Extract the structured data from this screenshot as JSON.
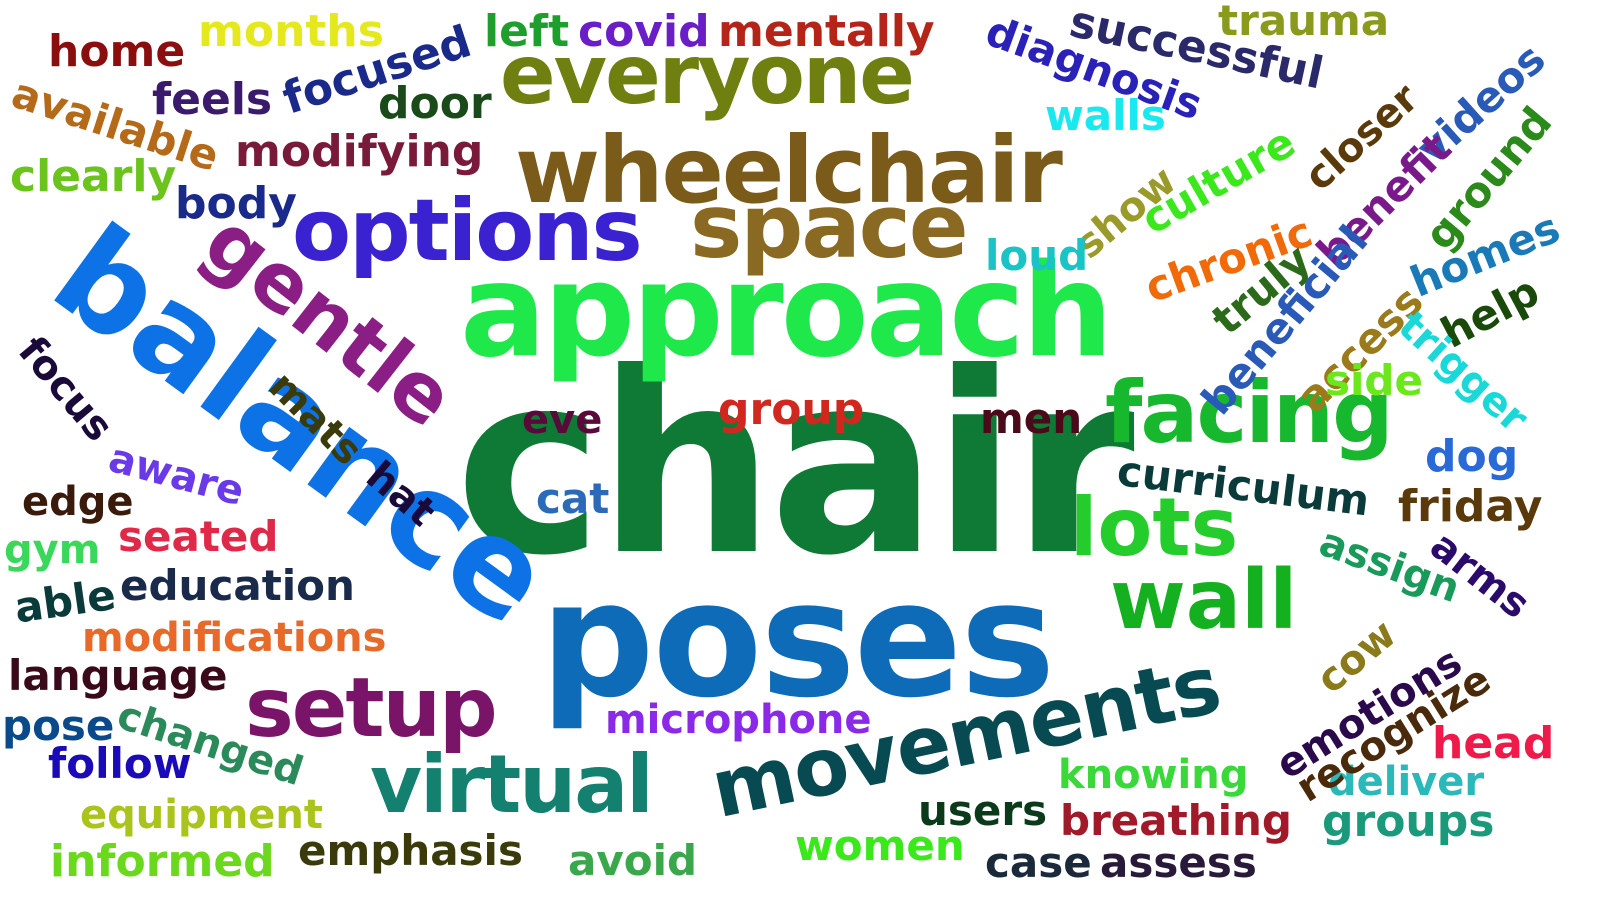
{
  "words": [
    {
      "text": "chair",
      "color": "#0f7a35"
    },
    {
      "text": "poses",
      "color": "#0e6bb8"
    },
    {
      "text": "approach",
      "color": "#1ee84a"
    },
    {
      "text": "balance",
      "color": "#0d72e6"
    },
    {
      "text": "wheelchair",
      "color": "#7a5b1a"
    },
    {
      "text": "options",
      "color": "#3a22d0"
    },
    {
      "text": "space",
      "color": "#8a6a22"
    },
    {
      "text": "everyone",
      "color": "#6f7f10"
    },
    {
      "text": "gentle",
      "color": "#8a1e84"
    },
    {
      "text": "movements",
      "color": "#084a52"
    },
    {
      "text": "facing",
      "color": "#17b82e"
    },
    {
      "text": "virtual",
      "color": "#138070"
    },
    {
      "text": "wall",
      "color": "#14b020"
    },
    {
      "text": "lots",
      "color": "#24cc2c"
    },
    {
      "text": "setup",
      "color": "#7a1468"
    },
    {
      "text": "months",
      "color": "#e4e81c"
    },
    {
      "text": "home",
      "color": "#8a0e0e"
    },
    {
      "text": "left",
      "color": "#1e9e2c"
    },
    {
      "text": "covid",
      "color": "#6a1ec8"
    },
    {
      "text": "mentally",
      "color": "#b52418"
    },
    {
      "text": "diagnosis",
      "color": "#2a22b8"
    },
    {
      "text": "successful",
      "color": "#2a2a6a"
    },
    {
      "text": "trauma",
      "color": "#8a9a1c"
    },
    {
      "text": "focused",
      "color": "#1a2a8a"
    },
    {
      "text": "feels",
      "color": "#3a1a6a"
    },
    {
      "text": "door",
      "color": "#1a4a1a"
    },
    {
      "text": "available",
      "color": "#b56a1a"
    },
    {
      "text": "modifying",
      "color": "#7a1a3a"
    },
    {
      "text": "clearly",
      "color": "#6ac41c"
    },
    {
      "text": "body",
      "color": "#1a2a8a"
    },
    {
      "text": "walls",
      "color": "#1ae8f0"
    },
    {
      "text": "culture",
      "color": "#3ae81c"
    },
    {
      "text": "show",
      "color": "#9a9a2a"
    },
    {
      "text": "closer",
      "color": "#5a3a0a"
    },
    {
      "text": "videos",
      "color": "#2a5ab8"
    },
    {
      "text": "ground",
      "color": "#2a8a1a"
    },
    {
      "text": "benefit",
      "color": "#7a1a8a"
    },
    {
      "text": "chronic",
      "color": "#f06a0a"
    },
    {
      "text": "loud",
      "color": "#1ac4c4"
    },
    {
      "text": "truly",
      "color": "#2a6a1a"
    },
    {
      "text": "homes",
      "color": "#1a7ab8"
    },
    {
      "text": "beneficial",
      "color": "#2a5ab8"
    },
    {
      "text": "access",
      "color": "#9a7a1a"
    },
    {
      "text": "help",
      "color": "#1a4a0a"
    },
    {
      "text": "trigger",
      "color": "#1ad8d8"
    },
    {
      "text": "side",
      "color": "#6ae81c"
    },
    {
      "text": "focus",
      "color": "#1a0a3a"
    },
    {
      "text": "mats",
      "color": "#3a3a0a"
    },
    {
      "text": "hat",
      "color": "#1a0a3a"
    },
    {
      "text": "aware",
      "color": "#6a3ae8"
    },
    {
      "text": "eve",
      "color": "#5a0a3a"
    },
    {
      "text": "group",
      "color": "#d0281e"
    },
    {
      "text": "men",
      "color": "#4a0a1a"
    },
    {
      "text": "cat",
      "color": "#2a6ab8"
    },
    {
      "text": "dog",
      "color": "#2a6ad8"
    },
    {
      "text": "curriculum",
      "color": "#0a3a3a"
    },
    {
      "text": "friday",
      "color": "#5a3a0a"
    },
    {
      "text": "edge",
      "color": "#3a1a0a"
    },
    {
      "text": "gym",
      "color": "#3ad85a"
    },
    {
      "text": "seated",
      "color": "#e02848"
    },
    {
      "text": "education",
      "color": "#1a2a4a"
    },
    {
      "text": "able",
      "color": "#0a3a3a"
    },
    {
      "text": "modifications",
      "color": "#e86a2a"
    },
    {
      "text": "language",
      "color": "#3a0a1a"
    },
    {
      "text": "pose",
      "color": "#0a4a8a"
    },
    {
      "text": "changed",
      "color": "#2a8a5a"
    },
    {
      "text": "follow",
      "color": "#1a0ab8"
    },
    {
      "text": "equipment",
      "color": "#aac41c"
    },
    {
      "text": "informed",
      "color": "#6ad81c"
    },
    {
      "text": "emphasis",
      "color": "#3a3a0a"
    },
    {
      "text": "avoid",
      "color": "#3aa84a"
    },
    {
      "text": "microphone",
      "color": "#8a2ae8"
    },
    {
      "text": "users",
      "color": "#0a3a1a"
    },
    {
      "text": "women",
      "color": "#3ae81c"
    },
    {
      "text": "case",
      "color": "#1a2a3a"
    },
    {
      "text": "assess",
      "color": "#2a1a3a"
    },
    {
      "text": "breathing",
      "color": "#a01a2a"
    },
    {
      "text": "knowing",
      "color": "#3ad83a"
    },
    {
      "text": "groups",
      "color": "#1a9a7a"
    },
    {
      "text": "deliver",
      "color": "#2ab8b8"
    },
    {
      "text": "head",
      "color": "#f01a4a"
    },
    {
      "text": "recognize",
      "color": "#4a2a0a"
    },
    {
      "text": "emotions",
      "color": "#2a0a4a"
    },
    {
      "text": "cow",
      "color": "#8a7a1a"
    },
    {
      "text": "assign",
      "color": "#1a9a5a"
    },
    {
      "text": "arms",
      "color": "#2a0a6a"
    }
  ]
}
